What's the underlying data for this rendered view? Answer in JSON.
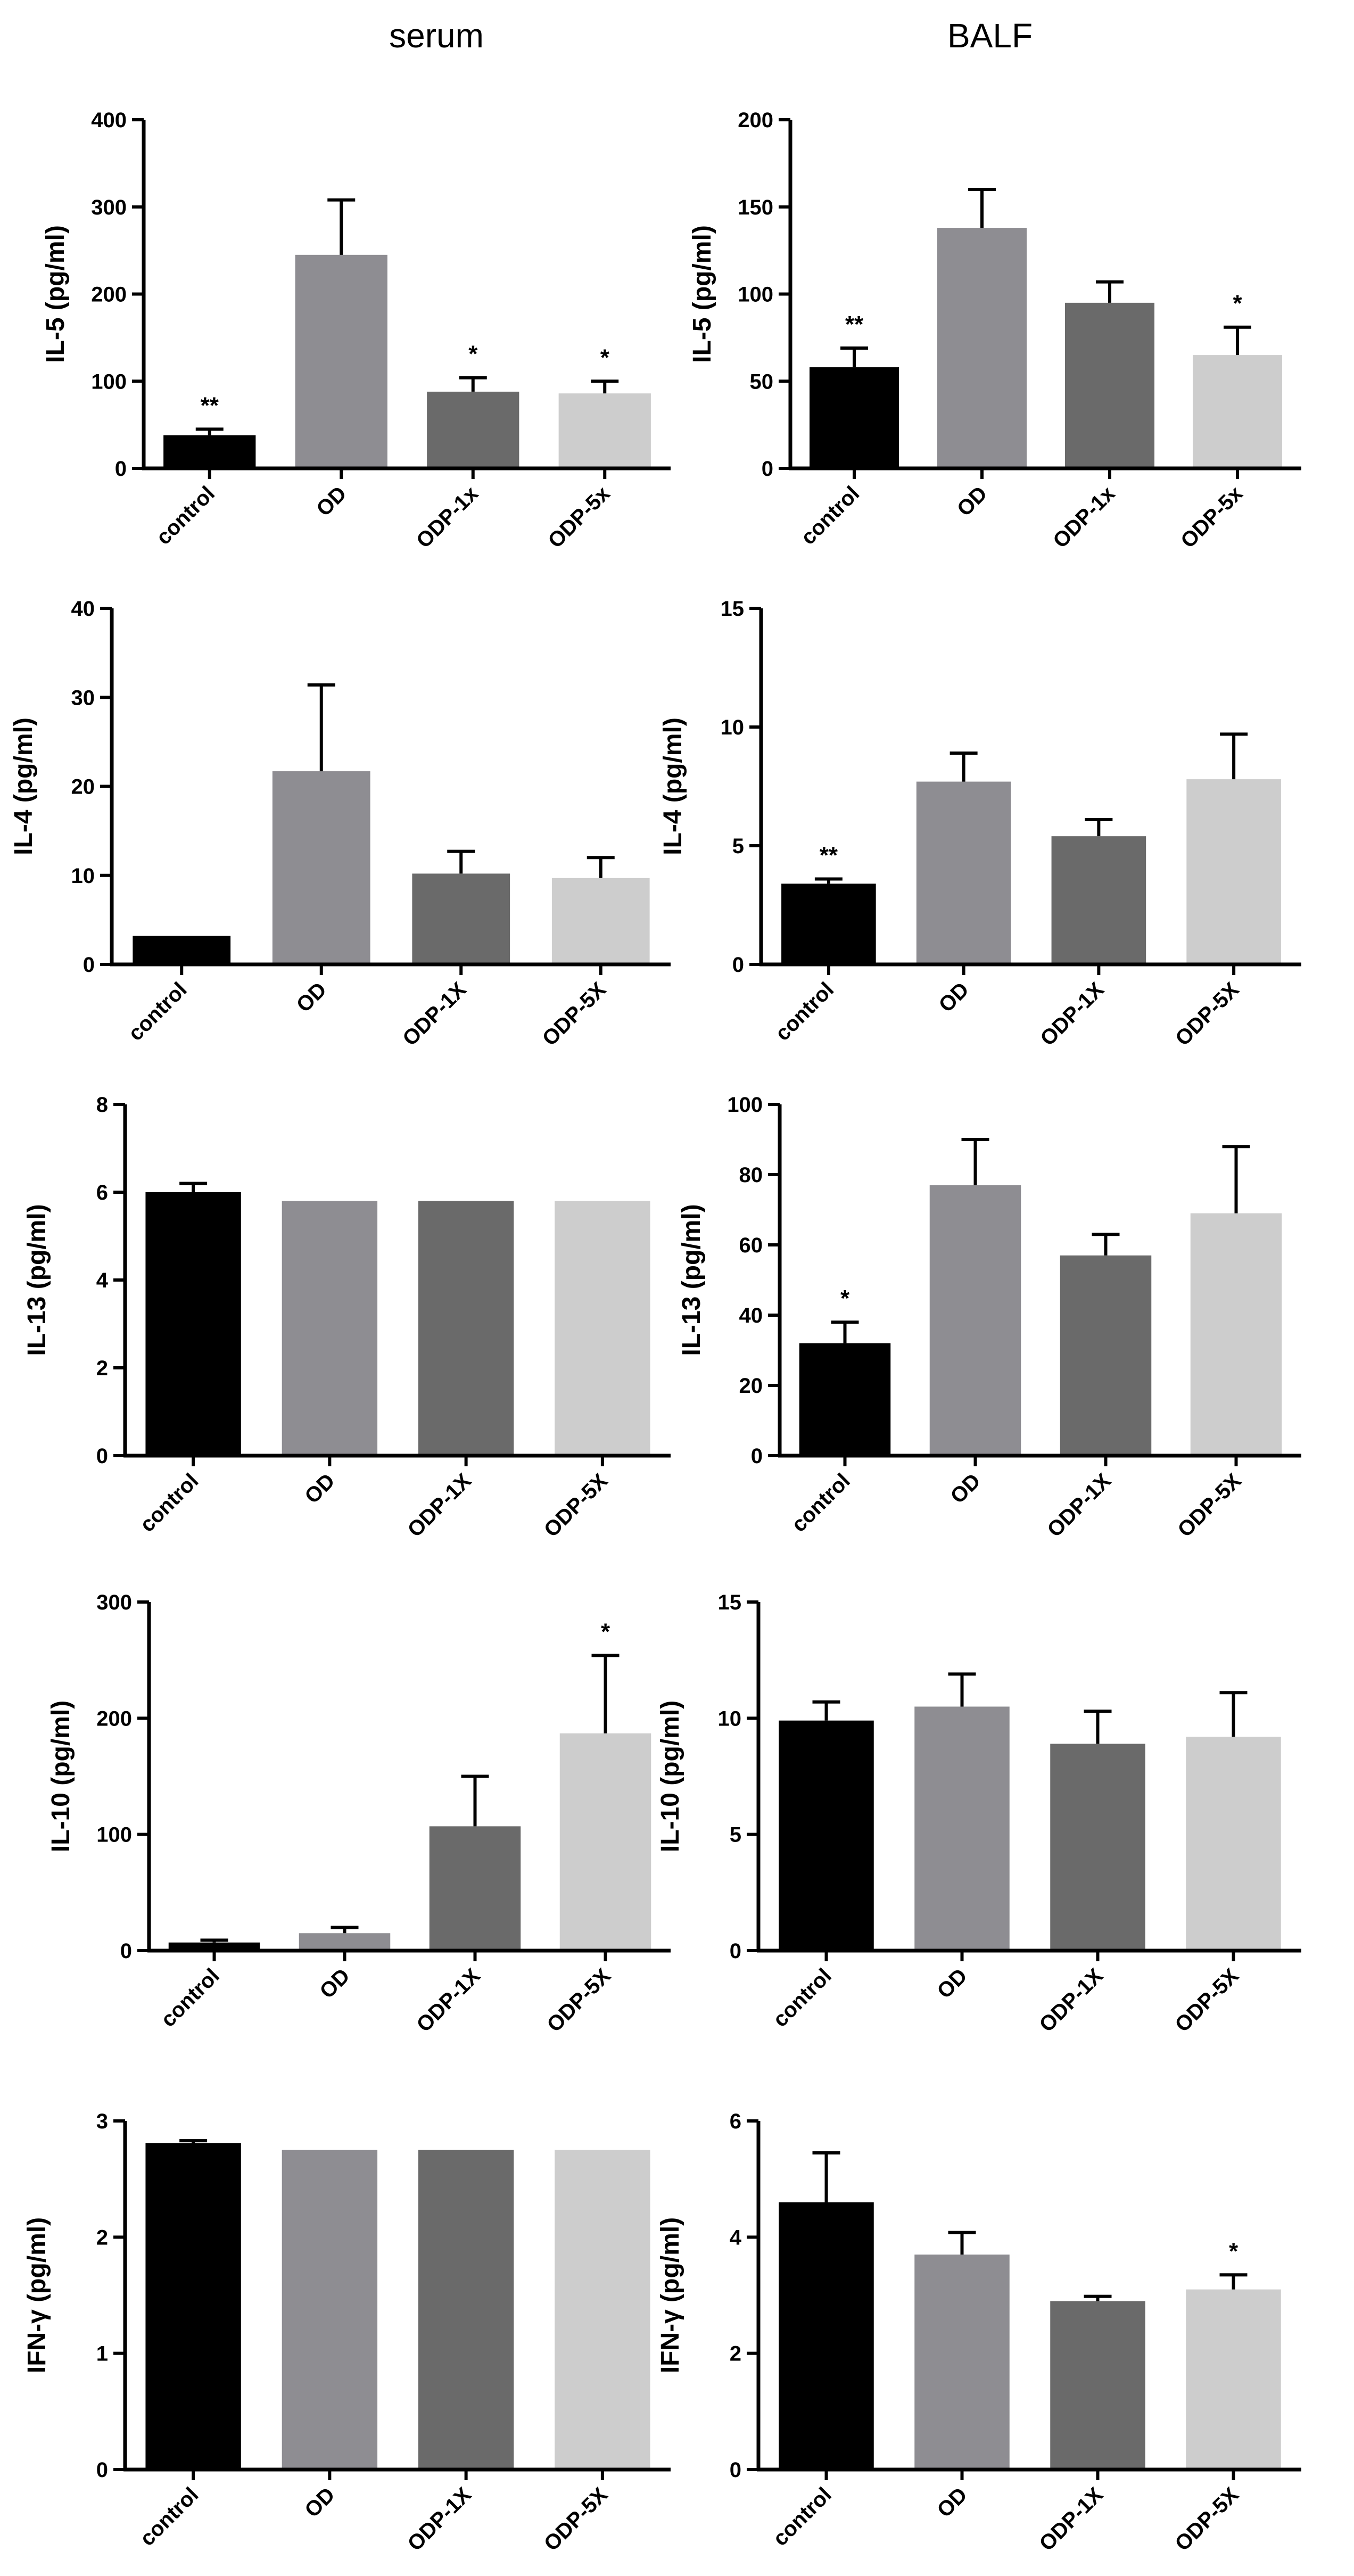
{
  "columns": {
    "serum": "serum",
    "balf": "BALF"
  },
  "colors": {
    "control": "#000000",
    "OD": "#8e8d92",
    "ODP-1": "#6a6a6a",
    "ODP-5": "#cdcdcd",
    "axis": "#000000"
  },
  "chart_data": [
    {
      "id": "serum-il5",
      "type": "bar",
      "ylabel": "IL-5 (pg/ml)",
      "ylim": [
        0,
        400
      ],
      "ticks": [
        0,
        100,
        200,
        300,
        400
      ],
      "categories": [
        "control",
        "OD",
        "ODP-1x",
        "ODP-5x"
      ],
      "values": [
        38,
        245,
        88,
        86
      ],
      "errors": [
        7,
        63,
        16,
        14
      ],
      "annotations": [
        "**",
        "",
        "*",
        "*"
      ]
    },
    {
      "id": "balf-il5",
      "type": "bar",
      "ylabel": "IL-5 (pg/ml)",
      "ylim": [
        0,
        200
      ],
      "ticks": [
        0,
        50,
        100,
        150,
        200
      ],
      "categories": [
        "control",
        "OD",
        "ODP-1x",
        "ODP-5x"
      ],
      "values": [
        58,
        138,
        95,
        65
      ],
      "errors": [
        11,
        22,
        12,
        16
      ],
      "annotations": [
        "**",
        "",
        "",
        "*"
      ]
    },
    {
      "id": "serum-il4",
      "type": "bar",
      "ylabel": "IL-4 (pg/ml)",
      "ylim": [
        0,
        40
      ],
      "ticks": [
        0,
        10,
        20,
        30,
        40
      ],
      "categories": [
        "control",
        "OD",
        "ODP-1X",
        "ODP-5X"
      ],
      "values": [
        3.2,
        21.7,
        10.2,
        9.7
      ],
      "errors": [
        0,
        9.7,
        2.5,
        2.3
      ],
      "annotations": [
        "",
        "",
        "",
        ""
      ]
    },
    {
      "id": "balf-il4",
      "type": "bar",
      "ylabel": "IL-4 (pg/ml)",
      "ylim": [
        0,
        15
      ],
      "ticks": [
        0,
        5,
        10,
        15
      ],
      "categories": [
        "control",
        "OD",
        "ODP-1X",
        "ODP-5X"
      ],
      "values": [
        3.4,
        7.7,
        5.4,
        7.8
      ],
      "errors": [
        0.2,
        1.2,
        0.7,
        1.9
      ],
      "annotations": [
        "**",
        "",
        "",
        ""
      ]
    },
    {
      "id": "serum-il13",
      "type": "bar",
      "ylabel": "IL-13 (pg/ml)",
      "ylim": [
        0,
        8
      ],
      "ticks": [
        0,
        2,
        4,
        6,
        8
      ],
      "categories": [
        "control",
        "OD",
        "ODP-1X",
        "ODP-5X"
      ],
      "values": [
        6.0,
        5.8,
        5.8,
        5.8
      ],
      "errors": [
        0.2,
        0,
        0,
        0
      ],
      "annotations": [
        "",
        "",
        "",
        ""
      ]
    },
    {
      "id": "balf-il13",
      "type": "bar",
      "ylabel": "IL-13 (pg/ml)",
      "ylim": [
        0,
        100
      ],
      "ticks": [
        0,
        20,
        40,
        60,
        80,
        100
      ],
      "categories": [
        "control",
        "OD",
        "ODP-1X",
        "ODP-5X"
      ],
      "values": [
        32,
        77,
        57,
        69
      ],
      "errors": [
        6,
        13,
        6,
        19
      ],
      "annotations": [
        "*",
        "",
        "",
        ""
      ]
    },
    {
      "id": "serum-il10",
      "type": "bar",
      "ylabel": "IL-10 (pg/ml)",
      "ylim": [
        0,
        300
      ],
      "ticks": [
        0,
        100,
        200,
        300
      ],
      "categories": [
        "control",
        "OD",
        "ODP-1X",
        "ODP-5X"
      ],
      "values": [
        7,
        15,
        107,
        187
      ],
      "errors": [
        2,
        5,
        43,
        67
      ],
      "annotations": [
        "",
        "",
        "",
        "*"
      ]
    },
    {
      "id": "balf-il10",
      "type": "bar",
      "ylabel": "IL-10 (pg/ml)",
      "ylim": [
        0,
        15
      ],
      "ticks": [
        0,
        5,
        10,
        15
      ],
      "categories": [
        "control",
        "OD",
        "ODP-1X",
        "ODP-5X"
      ],
      "values": [
        9.9,
        10.5,
        8.9,
        9.2
      ],
      "errors": [
        0.8,
        1.4,
        1.4,
        1.9
      ],
      "annotations": [
        "",
        "",
        "",
        ""
      ]
    },
    {
      "id": "serum-ifng",
      "type": "bar",
      "ylabel": "IFN-γ (pg/ml)",
      "ylim": [
        0,
        3
      ],
      "ticks": [
        0,
        1,
        2,
        3
      ],
      "categories": [
        "control",
        "OD",
        "ODP-1X",
        "ODP-5X"
      ],
      "values": [
        2.81,
        2.75,
        2.75,
        2.75
      ],
      "errors": [
        0.02,
        0,
        0,
        0
      ],
      "annotations": [
        "",
        "",
        "",
        ""
      ]
    },
    {
      "id": "balf-ifng",
      "type": "bar",
      "ylabel": "IFN-γ (pg/ml)",
      "ylim": [
        0,
        6
      ],
      "ticks": [
        0,
        2,
        4,
        6
      ],
      "categories": [
        "control",
        "OD",
        "ODP-1X",
        "ODP-5X"
      ],
      "values": [
        4.6,
        3.7,
        2.9,
        3.1
      ],
      "errors": [
        0.85,
        0.38,
        0.08,
        0.25
      ],
      "annotations": [
        "",
        "",
        "",
        "*"
      ]
    }
  ]
}
